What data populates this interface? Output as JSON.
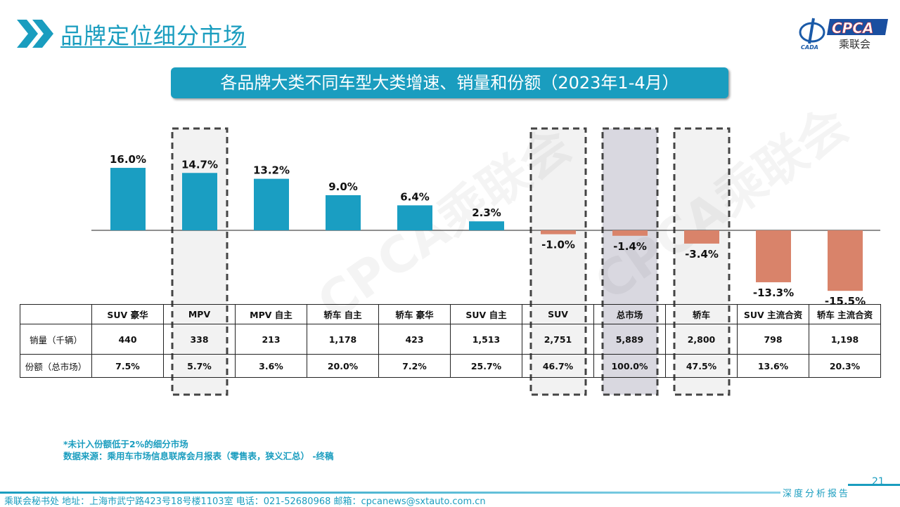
{
  "header": {
    "title": "品牌定位细分市场",
    "logo_text": "CPCA 乘联会 CADA"
  },
  "banner": "各品牌大类不同车型大类增速、销量和份额（2023年1-4月）",
  "watermark": "CPCA乘联会",
  "colors": {
    "accent": "#1a9dbf",
    "positive": "#1a9ec2",
    "negative": "#d9836a",
    "highlight": "#d9d8e0"
  },
  "chart_data": {
    "type": "bar",
    "categories": [
      "SUV 豪华",
      "MPV",
      "MPV 自主",
      "轿车 自主",
      "轿车 豪华",
      "SUV 自主",
      "SUV",
      "总市场",
      "轿车",
      "SUV 主流合资",
      "轿车 主流合资"
    ],
    "values": [
      16.0,
      14.7,
      13.2,
      9.0,
      6.4,
      2.3,
      -1.0,
      -1.4,
      -3.4,
      -13.3,
      -15.5
    ],
    "data_labels": [
      "16.0%",
      "14.7%",
      "13.2%",
      "9.0%",
      "6.4%",
      "2.3%",
      "-1.0%",
      "-1.4%",
      "-3.4%",
      "-13.3%",
      "-15.5%"
    ],
    "highlighted": [
      "MPV",
      "SUV",
      "总市场",
      "轿车"
    ],
    "grid": false
  },
  "table": {
    "rows": [
      {
        "label": "销量（千辆）",
        "values": [
          "440",
          "338",
          "213",
          "1,178",
          "423",
          "1,513",
          "2,751",
          "5,889",
          "2,800",
          "798",
          "1,198"
        ]
      },
      {
        "label": "份额（总市场）",
        "values": [
          "7.5%",
          "5.7%",
          "3.6%",
          "20.0%",
          "7.2%",
          "25.7%",
          "46.7%",
          "100.0%",
          "47.5%",
          "13.6%",
          "20.3%"
        ]
      }
    ]
  },
  "notes": [
    "*未计入份额低于2%的细分市场",
    "数据来源：乘用车市场信息联席会月报表（零售表，狭义汇总） -终稿"
  ],
  "footer": {
    "text": "乘联会秘书处   地址：上海市武宁路423号18号楼1103室  电话：021-52680968   邮箱：cpcanews@sxtauto.com.cn",
    "tag": "深度分析报告",
    "page": "21"
  }
}
